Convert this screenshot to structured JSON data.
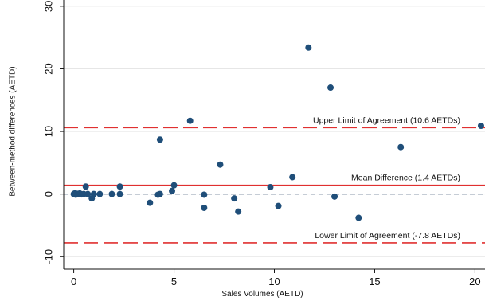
{
  "chart_data": {
    "type": "scatter",
    "title": "",
    "xlabel": "Sales Volumes (AETD)",
    "ylabel": "Between-method differences (AETD)",
    "xlim": [
      -0.5,
      20.5
    ],
    "ylim": [
      -12,
      31
    ],
    "xticks": [
      0,
      5,
      10,
      15,
      20
    ],
    "yticks": [
      -10,
      0,
      10,
      20,
      30
    ],
    "xtick_labels": [
      "0",
      "5",
      "10",
      "15",
      "20"
    ],
    "ytick_labels": [
      "-10",
      "0",
      "10",
      "20",
      "30"
    ],
    "grid": "horizontal",
    "point_color": "#1f4e79",
    "reference_lines": [
      {
        "name": "upper-limit",
        "y": 10.6,
        "style": "dashed",
        "color": "#e03030",
        "label": "Upper Limit of Agreement (10.6 AETDs)"
      },
      {
        "name": "mean-difference",
        "y": 1.4,
        "style": "solid",
        "color": "#e03030",
        "label": "Mean Difference (1.4 AETDs)"
      },
      {
        "name": "zero",
        "y": 0,
        "style": "dashed",
        "color": "#1f3a5f",
        "label": ""
      },
      {
        "name": "lower-limit",
        "y": -7.8,
        "style": "dashed",
        "color": "#e03030",
        "label": "Lower Limit of Agreement (-7.8 AETDs)"
      }
    ],
    "points": [
      {
        "x": 0.0,
        "y": 0.0
      },
      {
        "x": 0.05,
        "y": 0.1
      },
      {
        "x": 0.1,
        "y": -0.1
      },
      {
        "x": 0.15,
        "y": 0.05
      },
      {
        "x": 0.2,
        "y": 0.0
      },
      {
        "x": 0.3,
        "y": 0.1
      },
      {
        "x": 0.4,
        "y": -0.05
      },
      {
        "x": 0.5,
        "y": 0.0
      },
      {
        "x": 0.6,
        "y": 1.2
      },
      {
        "x": 0.7,
        "y": 0.0
      },
      {
        "x": 0.9,
        "y": -0.7
      },
      {
        "x": 1.0,
        "y": 0.0
      },
      {
        "x": 1.3,
        "y": 0.0
      },
      {
        "x": 1.9,
        "y": 0.0
      },
      {
        "x": 2.3,
        "y": 1.2
      },
      {
        "x": 2.3,
        "y": 0.0
      },
      {
        "x": 3.8,
        "y": -1.4
      },
      {
        "x": 4.2,
        "y": -0.1
      },
      {
        "x": 4.3,
        "y": 8.7
      },
      {
        "x": 4.3,
        "y": 0.0
      },
      {
        "x": 4.9,
        "y": 0.5
      },
      {
        "x": 5.0,
        "y": 1.4
      },
      {
        "x": 5.8,
        "y": 11.7
      },
      {
        "x": 6.5,
        "y": -0.1
      },
      {
        "x": 6.5,
        "y": -2.2
      },
      {
        "x": 7.3,
        "y": 4.7
      },
      {
        "x": 8.0,
        "y": -0.7
      },
      {
        "x": 8.2,
        "y": -2.8
      },
      {
        "x": 9.8,
        "y": 1.1
      },
      {
        "x": 10.2,
        "y": -1.9
      },
      {
        "x": 10.9,
        "y": 2.7
      },
      {
        "x": 11.7,
        "y": 23.4
      },
      {
        "x": 12.8,
        "y": 17.0
      },
      {
        "x": 13.0,
        "y": -0.4
      },
      {
        "x": 14.2,
        "y": -3.8
      },
      {
        "x": 16.3,
        "y": 7.5
      },
      {
        "x": 20.3,
        "y": 10.9
      }
    ]
  }
}
